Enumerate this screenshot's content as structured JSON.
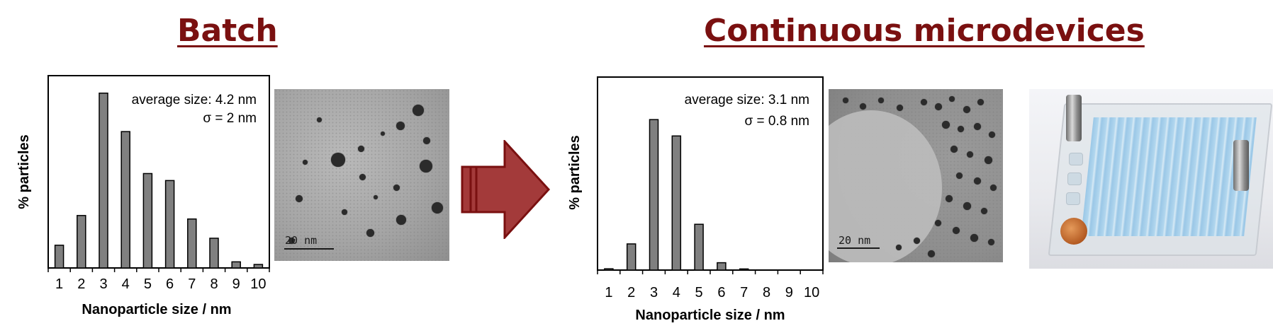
{
  "headings": {
    "left": "Batch",
    "right": "Continuous microdevices"
  },
  "colors": {
    "heading": "#7a1010",
    "bar_fill": "#808080",
    "arrow_fill": "#a33a3a",
    "arrow_stroke": "#7a1010"
  },
  "arrow_icon": "right-arrow-icon",
  "chart_data": [
    {
      "type": "bar",
      "categories": [
        "1",
        "2",
        "3",
        "4",
        "5",
        "6",
        "7",
        "8",
        "9",
        "10"
      ],
      "values": [
        13,
        30,
        100,
        78,
        54,
        50,
        28,
        17,
        3.5,
        2
      ],
      "ylim": [
        0,
        110
      ],
      "title": "",
      "xlabel": "Nanoparticle size / nm",
      "ylabel": "% particles",
      "annotations": [
        "average size: 4.2 nm",
        "σ = 2 nm"
      ],
      "grid": false,
      "legend": "none"
    },
    {
      "type": "bar",
      "categories": [
        "1",
        "2",
        "3",
        "4",
        "5",
        "6",
        "7",
        "8",
        "9",
        "10"
      ],
      "values": [
        0.8,
        16,
        92,
        82,
        28,
        4.5,
        0.7,
        0,
        0,
        0
      ],
      "ylim": [
        0,
        118
      ],
      "title": "",
      "xlabel": "Nanoparticle size / nm",
      "ylabel": "% particles",
      "annotations": [
        "average size: 3.1 nm",
        "σ = 0.8 nm"
      ],
      "grid": false,
      "legend": "none"
    }
  ],
  "tem_images": [
    {
      "scale_label": "20 nm"
    },
    {
      "scale_label": "20 nm"
    }
  ]
}
